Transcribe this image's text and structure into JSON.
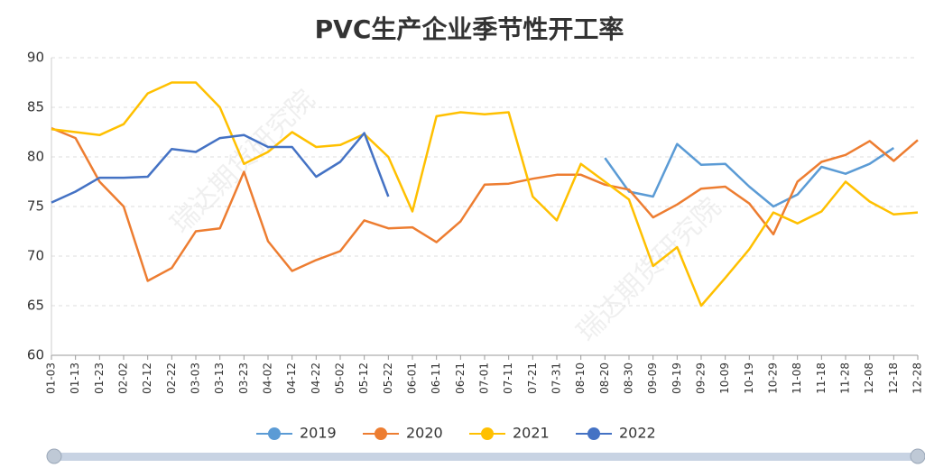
{
  "chart_data": {
    "type": "line",
    "title": "PVC生产企业季节性开工率",
    "watermark": "瑞达期货研究院",
    "categories": [
      "01-03",
      "01-13",
      "01-23",
      "02-02",
      "02-12",
      "02-22",
      "03-03",
      "03-13",
      "03-23",
      "04-02",
      "04-12",
      "04-22",
      "05-02",
      "05-12",
      "05-22",
      "06-01",
      "06-11",
      "06-21",
      "07-01",
      "07-11",
      "07-21",
      "07-31",
      "08-10",
      "08-20",
      "08-30",
      "09-09",
      "09-19",
      "09-29",
      "10-09",
      "10-19",
      "10-29",
      "11-08",
      "11-18",
      "11-28",
      "12-08",
      "12-18",
      "12-28"
    ],
    "series": [
      {
        "name": "2019",
        "color": "#5b9bd5",
        "values": [
          null,
          null,
          null,
          null,
          null,
          null,
          null,
          null,
          null,
          null,
          null,
          null,
          null,
          null,
          null,
          null,
          null,
          null,
          null,
          null,
          null,
          null,
          null,
          79.9,
          76.5,
          76,
          81.3,
          79.2,
          79.3,
          77,
          75,
          76.2,
          79,
          78.3,
          79.3,
          80.9,
          null
        ]
      },
      {
        "name": "2020",
        "color": "#ed7d31",
        "values": [
          82.9,
          81.9,
          77.5,
          75,
          67.5,
          68.8,
          72.5,
          72.8,
          78.5,
          71.5,
          68.5,
          69.6,
          70.5,
          73.6,
          72.8,
          72.9,
          71.4,
          73.5,
          77.2,
          77.3,
          77.8,
          78.2,
          78.2,
          77.2,
          76.7,
          73.9,
          75.2,
          76.8,
          77,
          75.3,
          72.2,
          77.5,
          79.5,
          80.2,
          81.6,
          79.6,
          81.7
        ]
      },
      {
        "name": "2021",
        "color": "#ffc000",
        "values": [
          82.8,
          82.5,
          82.2,
          83.3,
          86.4,
          87.5,
          87.5,
          85,
          79.3,
          80.5,
          82.5,
          81,
          81.2,
          82.3,
          80,
          74.5,
          84.1,
          84.5,
          84.3,
          84.5,
          76,
          73.6,
          79.3,
          77.5,
          75.7,
          69,
          70.9,
          65,
          67.8,
          70.7,
          74.4,
          73.3,
          74.5,
          77.5,
          75.5,
          74.2,
          74.4
        ]
      },
      {
        "name": "2022",
        "color": "#4472c4",
        "values": [
          75.4,
          76.5,
          77.9,
          77.9,
          78,
          80.8,
          80.5,
          81.9,
          82.2,
          81,
          81,
          78,
          79.5,
          82.4,
          76,
          null,
          null,
          null,
          null,
          null,
          null,
          null,
          null,
          null,
          null,
          null,
          null,
          null,
          null,
          null,
          null,
          null,
          null,
          null,
          null,
          null,
          null
        ]
      }
    ],
    "ylim": [
      60,
      90
    ],
    "yticks": [
      60,
      65,
      70,
      75,
      80,
      85,
      90
    ],
    "grid": true
  }
}
